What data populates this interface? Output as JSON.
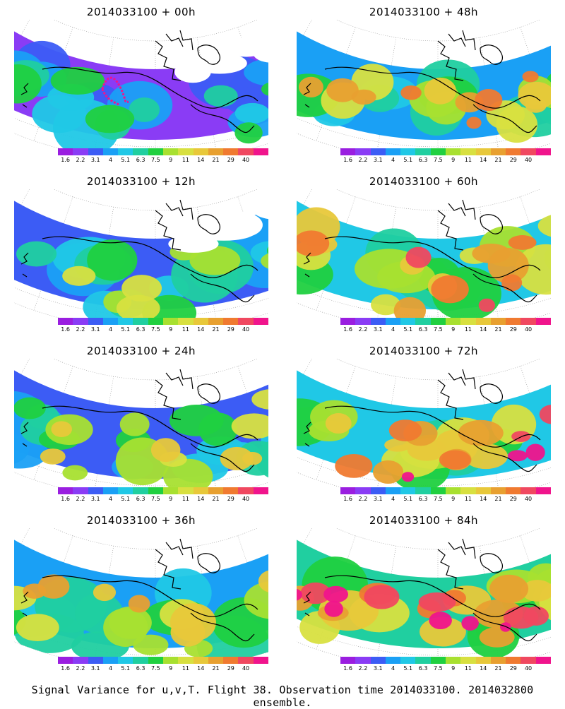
{
  "panels": [
    {
      "id": "p00",
      "title": "2014033100 + 00h",
      "intensity": 0.2,
      "flight_track": true
    },
    {
      "id": "p48",
      "title": "2014033100 + 48h",
      "intensity": 0.6
    },
    {
      "id": "p12",
      "title": "2014033100 + 12h",
      "intensity": 0.35
    },
    {
      "id": "p60",
      "title": "2014033100 + 60h",
      "intensity": 0.7
    },
    {
      "id": "p24",
      "title": "2014033100 + 24h",
      "intensity": 0.45
    },
    {
      "id": "p72",
      "title": "2014033100 + 72h",
      "intensity": 0.8
    },
    {
      "id": "p36",
      "title": "2014033100 + 36h",
      "intensity": 0.55
    },
    {
      "id": "p84",
      "title": "2014033100 + 84h",
      "intensity": 0.9
    }
  ],
  "colorbar": {
    "colors": [
      "#9a1ee0",
      "#8a3cf5",
      "#3c5cf5",
      "#1aa0f5",
      "#20c8e6",
      "#20cfa0",
      "#20d040",
      "#a8e030",
      "#d8e040",
      "#e8c83a",
      "#e8a030",
      "#f07a30",
      "#f04860",
      "#f0148c"
    ],
    "labels": [
      "1.6",
      "2.2",
      "3.1",
      "4",
      "5.1",
      "6.3",
      "7.5",
      "9",
      "11",
      "14",
      "21",
      "29",
      "40"
    ]
  },
  "footer": "Signal Variance for u,v,T. Flight 38. Observation time 2014033100. 2014032800 ensemble."
}
